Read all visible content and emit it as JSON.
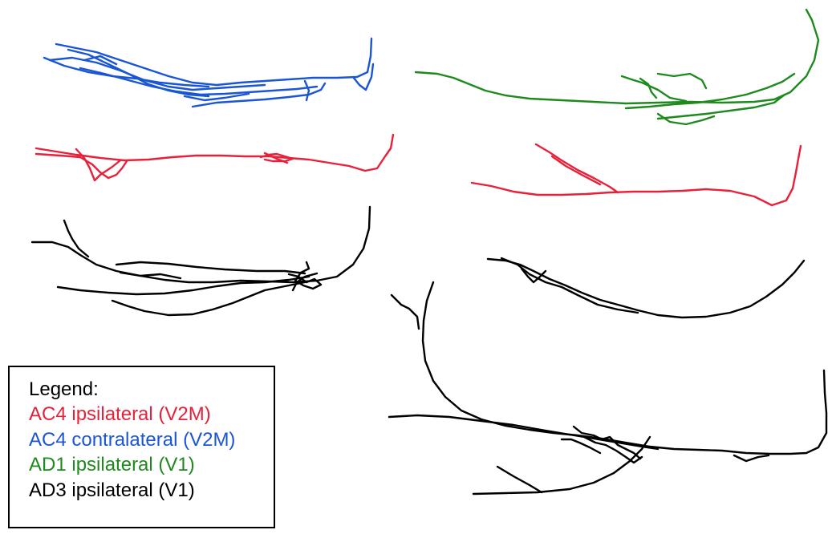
{
  "legend": {
    "title": "Legend:",
    "items": [
      {
        "label": "AC4 ipsilateral (V2M)",
        "color": "#e8213a"
      },
      {
        "label": "AC4 contralateral (V2M)",
        "color": "#1a55d6"
      },
      {
        "label": "AD1 ipsilateral (V1)",
        "color": "#1e8a1e"
      },
      {
        "label": "AD3 ipsilateral (V1)",
        "color": "#000000"
      }
    ]
  },
  "traces": [
    {
      "name": "trace-ac4-contralateral",
      "group": "AC4 contralateral (V2M)",
      "color": "#1a55d6"
    },
    {
      "name": "trace-ad1-ipsilateral",
      "group": "AD1 ipsilateral (V1)",
      "color": "#1e8a1e"
    },
    {
      "name": "trace-ac4-ipsilateral-left",
      "group": "AC4 ipsilateral (V2M)",
      "color": "#e8213a"
    },
    {
      "name": "trace-ac4-ipsilateral-right",
      "group": "AC4 ipsilateral (V2M)",
      "color": "#e8213a"
    },
    {
      "name": "trace-ad3-ipsilateral-left",
      "group": "AD3 ipsilateral (V1)",
      "color": "#000000"
    },
    {
      "name": "trace-ad3-ipsilateral-right",
      "group": "AD3 ipsilateral (V1)",
      "color": "#000000"
    }
  ]
}
